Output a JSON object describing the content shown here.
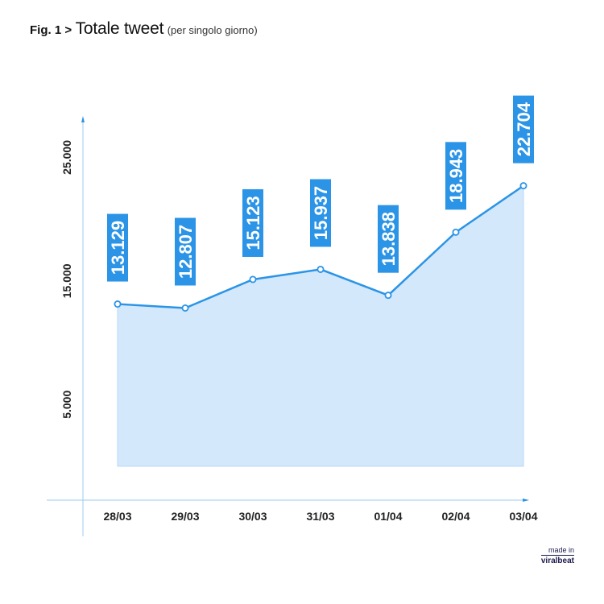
{
  "figure": {
    "prefix": "Fig. 1 >",
    "title": "Totale tweet",
    "subtitle": "(per singolo giorno)"
  },
  "credit": {
    "made_in": "made in",
    "brand": "viralbeat"
  },
  "colors": {
    "accent": "#2b94e6",
    "fill": "#d3e8fb",
    "label_bg": "#2b94e6",
    "axis": "#9ccbf0"
  },
  "chart_data": {
    "type": "area",
    "title": "Totale tweet",
    "subtitle": "(per singolo giorno)",
    "xlabel": "",
    "ylabel": "",
    "ylim": [
      0,
      27700
    ],
    "yticks": [
      5000,
      15000,
      25000
    ],
    "ytick_labels": [
      "5.000",
      "15.000",
      "25.000"
    ],
    "categories": [
      "28/03",
      "29/03",
      "30/03",
      "31/03",
      "01/04",
      "02/04",
      "03/04"
    ],
    "series": [
      {
        "values": [
          13129,
          12807,
          15123,
          15937,
          13838,
          18943,
          22704
        ],
        "labels": [
          "13.129",
          "12.807",
          "15.123",
          "15.937",
          "13.838",
          "18.943",
          "22.704"
        ]
      }
    ],
    "grid": false,
    "legend": "none"
  }
}
